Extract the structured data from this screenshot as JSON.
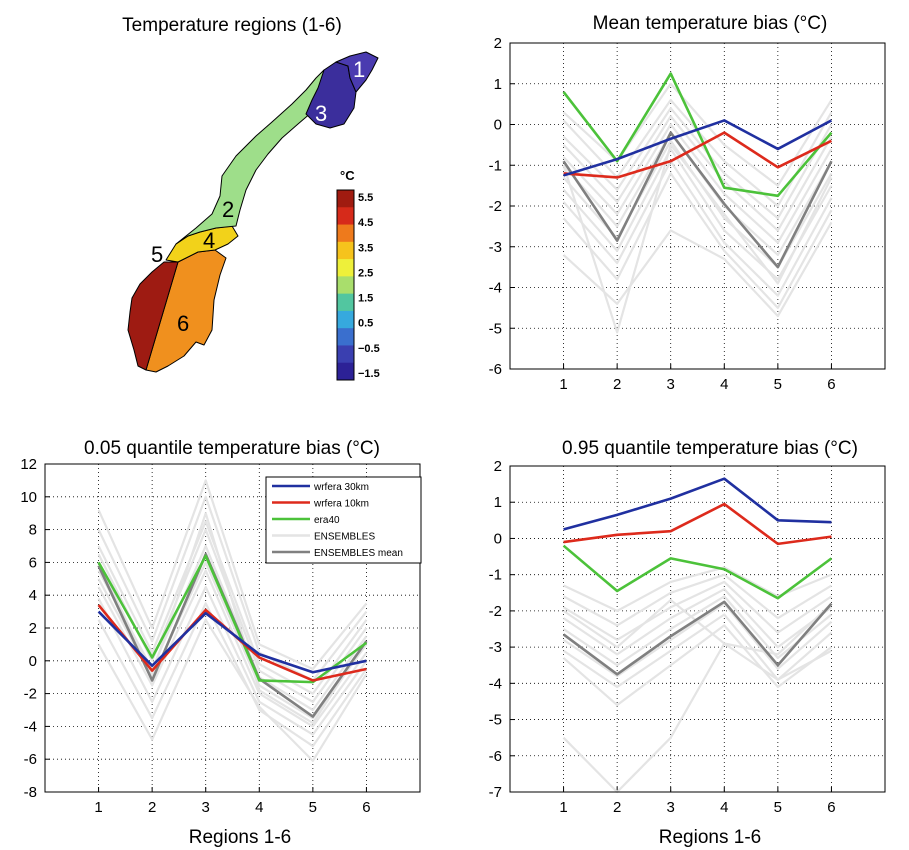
{
  "map_panel": {
    "title": "Temperature regions (1-6)",
    "colorbar_unit": "°C",
    "colorbar_ticks": [
      "5.5",
      "4.5",
      "3.5",
      "2.5",
      "1.5",
      "0.5",
      "−0.5",
      "−1.5"
    ],
    "colorbar_colors": [
      "#a01b10",
      "#d62a1a",
      "#ee7a1c",
      "#f6c31c",
      "#eef03a",
      "#a9de6c",
      "#52c6a0",
      "#36a9de",
      "#3a6fce",
      "#3a3fb0",
      "#2c2196"
    ],
    "region_labels": [
      "1",
      "2",
      "3",
      "4",
      "5",
      "6"
    ],
    "region_colors": {
      "1": "#4a3bb0",
      "2": "#9ede8a",
      "3": "#3b2e9c",
      "4": "#f2d21a",
      "5": "#9e1b12",
      "6": "#f0901e"
    }
  },
  "series_colors": {
    "wrfera30": "#2030a0",
    "wrfera10": "#dd2a1c",
    "era40": "#4cc23a",
    "ensembles": "#e4e4e4",
    "ensmean": "#808080"
  },
  "chart_data": [
    {
      "id": "mean",
      "type": "line",
      "title": "Mean temperature bias (°C)",
      "xlabel": "",
      "xlim": [
        0,
        7
      ],
      "x": [
        1,
        2,
        3,
        4,
        5,
        6
      ],
      "ylim": [
        -6,
        2
      ],
      "yticks": [
        "-6",
        "-5",
        "-4",
        "-3",
        "-2",
        "-1",
        "0",
        "1",
        "2"
      ],
      "xticks": [
        "1",
        "2",
        "3",
        "4",
        "5",
        "6"
      ],
      "grid": true,
      "ensembles": [
        [
          0.3,
          -0.9,
          1.0,
          -0.5,
          -1.5,
          0.6
        ],
        [
          0.1,
          -1.3,
          0.6,
          -0.9,
          -2.0,
          0.3
        ],
        [
          -0.3,
          -1.6,
          0.4,
          -1.2,
          -2.3,
          0.0
        ],
        [
          -0.5,
          -1.9,
          0.2,
          -1.4,
          -2.6,
          -0.3
        ],
        [
          -0.8,
          -2.2,
          0.0,
          -1.7,
          -2.9,
          -0.6
        ],
        [
          -1.0,
          -2.5,
          -0.2,
          -2.0,
          -3.2,
          -0.9
        ],
        [
          -1.3,
          -2.8,
          -0.4,
          -2.3,
          -3.5,
          -1.2
        ],
        [
          -1.6,
          -3.1,
          -0.6,
          -2.6,
          -3.8,
          -1.5
        ],
        [
          -1.9,
          -3.4,
          -0.9,
          -2.9,
          -4.2,
          -1.8
        ],
        [
          -2.3,
          -3.8,
          -1.2,
          -3.1,
          -4.5,
          -2.1
        ],
        [
          -3.2,
          -4.4,
          -2.6,
          -3.3,
          -4.7,
          -2.4
        ],
        [
          -1.0,
          -5.1,
          -0.5,
          -2.2,
          -3.9,
          -1.3
        ]
      ],
      "series": [
        {
          "name": "ENSEMBLES mean",
          "key": "ensmean",
          "values": [
            -0.9,
            -2.85,
            -0.2,
            -1.95,
            -3.5,
            -0.9
          ]
        },
        {
          "name": "era40",
          "key": "era40",
          "values": [
            0.8,
            -0.9,
            1.25,
            -1.55,
            -1.75,
            -0.2
          ]
        },
        {
          "name": "wrfera 10km",
          "key": "wrfera10",
          "values": [
            -1.2,
            -1.3,
            -0.9,
            -0.2,
            -1.05,
            -0.4
          ]
        },
        {
          "name": "wrfera 30km",
          "key": "wrfera30",
          "values": [
            -1.25,
            -0.85,
            -0.35,
            0.1,
            -0.6,
            0.1
          ]
        }
      ]
    },
    {
      "id": "q05",
      "type": "line",
      "title": "0.05 quantile temperature bias (°C)",
      "xlabel": "Regions 1-6",
      "xlim": [
        0,
        7
      ],
      "x": [
        1,
        2,
        3,
        4,
        5,
        6
      ],
      "ylim": [
        -8,
        12
      ],
      "yticks": [
        "-8",
        "-6",
        "-4",
        "-2",
        "0",
        "2",
        "4",
        "6",
        "8",
        "10",
        "12"
      ],
      "xticks": [
        "1",
        "2",
        "3",
        "4",
        "5",
        "6"
      ],
      "grid": true,
      "legend_position": "top-right",
      "ensembles": [
        [
          9.2,
          2.0,
          11.0,
          1.0,
          -0.5,
          3.5
        ],
        [
          8.0,
          1.2,
          10.0,
          0.5,
          -1.2,
          3.0
        ],
        [
          7.0,
          0.5,
          8.5,
          -0.2,
          -2.0,
          2.5
        ],
        [
          6.5,
          0.0,
          8.0,
          -0.6,
          -2.5,
          2.0
        ],
        [
          5.5,
          -0.5,
          7.0,
          -1.0,
          -3.0,
          1.5
        ],
        [
          5.0,
          -1.0,
          6.0,
          -1.5,
          -3.5,
          1.0
        ],
        [
          4.5,
          -1.5,
          5.5,
          -2.0,
          -4.0,
          0.5
        ],
        [
          3.8,
          -2.5,
          4.5,
          -2.5,
          -4.5,
          0.0
        ],
        [
          2.5,
          -3.5,
          3.5,
          -3.0,
          -5.2,
          -0.5
        ],
        [
          1.0,
          -4.8,
          2.5,
          -2.8,
          -6.1,
          -0.8
        ],
        [
          6.0,
          -0.8,
          9.0,
          -1.8,
          -3.8,
          1.2
        ]
      ],
      "series": [
        {
          "name": "ENSEMBLES mean",
          "key": "ensmean",
          "values": [
            5.8,
            -1.2,
            6.5,
            -1.1,
            -3.4,
            1.2
          ]
        },
        {
          "name": "era40",
          "key": "era40",
          "values": [
            6.0,
            0.2,
            6.4,
            -1.2,
            -1.3,
            1.1
          ]
        },
        {
          "name": "wrfera 10km",
          "key": "wrfera10",
          "values": [
            3.4,
            -0.6,
            3.1,
            0.2,
            -1.2,
            -0.5
          ]
        },
        {
          "name": "wrfera 30km",
          "key": "wrfera30",
          "values": [
            3.0,
            -0.3,
            2.9,
            0.4,
            -0.7,
            0.0
          ]
        }
      ],
      "legend": [
        {
          "label": "wrfera 30km",
          "key": "wrfera30"
        },
        {
          "label": "wrfera 10km",
          "key": "wrfera10"
        },
        {
          "label": "era40",
          "key": "era40"
        },
        {
          "label": "ENSEMBLES",
          "key": "ensembles"
        },
        {
          "label": "ENSEMBLES mean",
          "key": "ensmean"
        }
      ]
    },
    {
      "id": "q95",
      "type": "line",
      "title": "0.95 quantile temperature bias (°C)",
      "xlabel": "Regions 1-6",
      "xlim": [
        0,
        7
      ],
      "x": [
        1,
        2,
        3,
        4,
        5,
        6
      ],
      "ylim": [
        -7,
        2
      ],
      "yticks": [
        "-7",
        "-6",
        "-5",
        "-4",
        "-3",
        "-2",
        "-1",
        "0",
        "1",
        "2"
      ],
      "xticks": [
        "1",
        "2",
        "3",
        "4",
        "5",
        "6"
      ],
      "grid": true,
      "ensembles": [
        [
          -1.3,
          -2.0,
          -1.2,
          -0.8,
          -1.6,
          -1.0
        ],
        [
          -1.6,
          -2.4,
          -1.5,
          -1.0,
          -2.2,
          -1.3
        ],
        [
          -1.9,
          -2.8,
          -1.9,
          -1.2,
          -2.6,
          -1.6
        ],
        [
          -2.2,
          -3.2,
          -2.2,
          -1.4,
          -3.0,
          -1.9
        ],
        [
          -2.5,
          -3.5,
          -2.5,
          -1.6,
          -3.3,
          -2.1
        ],
        [
          -2.8,
          -3.8,
          -2.8,
          -1.8,
          -3.6,
          -2.3
        ],
        [
          -3.1,
          -4.1,
          -3.1,
          -2.1,
          -3.9,
          -2.6
        ],
        [
          -3.3,
          -4.6,
          -3.5,
          -2.4,
          -4.1,
          -3.0
        ],
        [
          -2.0,
          -3.0,
          -1.7,
          -2.9,
          -3.2,
          -1.8
        ],
        [
          -5.5,
          -7.0,
          -5.5,
          -2.9,
          -3.9,
          -3.1
        ]
      ],
      "series": [
        {
          "name": "ENSEMBLES mean",
          "key": "ensmean",
          "values": [
            -2.65,
            -3.75,
            -2.7,
            -1.75,
            -3.5,
            -1.8
          ]
        },
        {
          "name": "era40",
          "key": "era40",
          "values": [
            -0.2,
            -1.45,
            -0.55,
            -0.85,
            -1.65,
            -0.55
          ]
        },
        {
          "name": "wrfera 10km",
          "key": "wrfera10",
          "values": [
            -0.1,
            0.1,
            0.2,
            0.95,
            -0.15,
            0.05
          ]
        },
        {
          "name": "wrfera 30km",
          "key": "wrfera30",
          "values": [
            0.25,
            0.65,
            1.1,
            1.65,
            0.5,
            0.45
          ]
        }
      ]
    }
  ]
}
